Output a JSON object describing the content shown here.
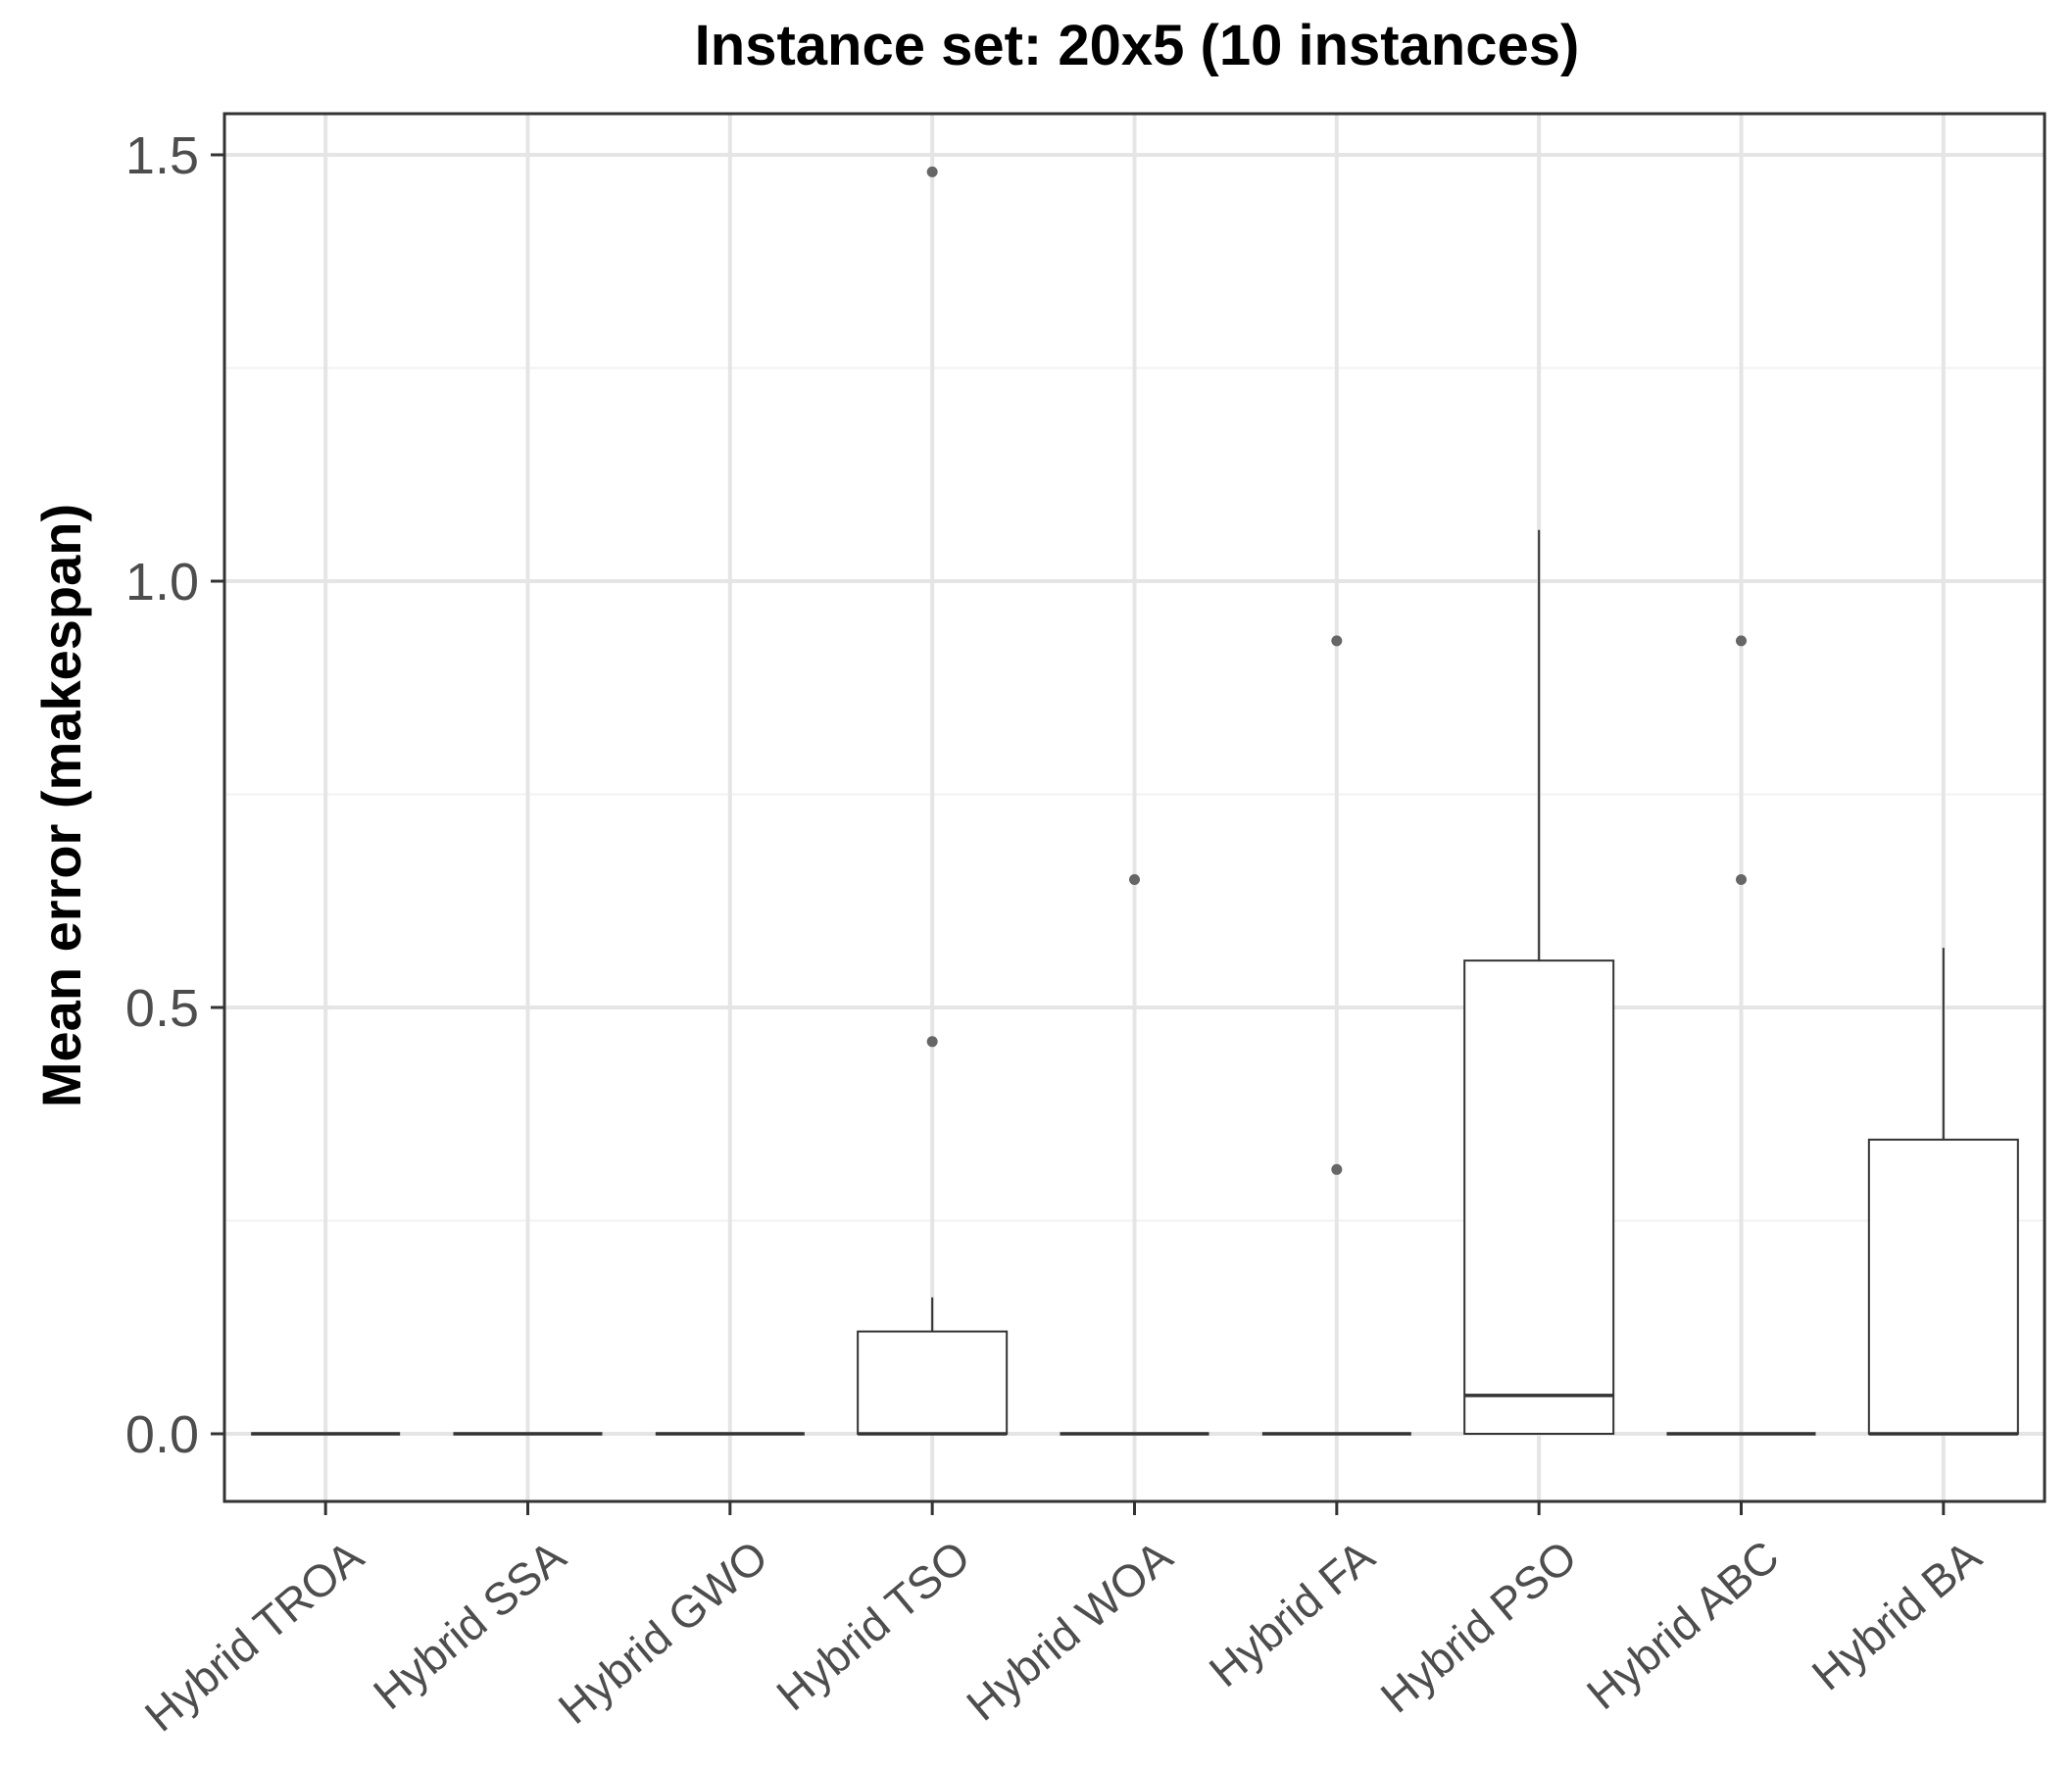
{
  "chart_data": {
    "type": "boxplot",
    "title": "Instance set: 20x5 (10 instances)",
    "xlabel": "",
    "ylabel": "Mean error (makespan)",
    "ylim": [
      -0.075,
      1.56
    ],
    "yticks": [
      0.0,
      0.5,
      1.0,
      1.5
    ],
    "ytick_labels": [
      "0.0",
      "0.5",
      "1.0",
      "1.5"
    ],
    "grid": true,
    "categories": [
      "Hybrid TROA",
      "Hybrid SSA",
      "Hybrid GWO",
      "Hybrid TSO",
      "Hybrid WOA",
      "Hybrid FA",
      "Hybrid PSO",
      "Hybrid ABC",
      "Hybrid BA"
    ],
    "boxes": [
      {
        "category": "Hybrid TROA",
        "min": 0,
        "q1": 0,
        "median": 0,
        "q3": 0,
        "max": 0,
        "outliers": []
      },
      {
        "category": "Hybrid SSA",
        "min": 0,
        "q1": 0,
        "median": 0,
        "q3": 0,
        "max": 0,
        "outliers": []
      },
      {
        "category": "Hybrid GWO",
        "min": 0,
        "q1": 0,
        "median": 0,
        "q3": 0,
        "max": 0,
        "outliers": []
      },
      {
        "category": "Hybrid TSO",
        "min": 0,
        "q1": 0,
        "median": 0,
        "q3": 0.12,
        "max": 0.16,
        "outliers": [
          0.46,
          1.48
        ]
      },
      {
        "category": "Hybrid WOA",
        "min": 0,
        "q1": 0,
        "median": 0,
        "q3": 0,
        "max": 0,
        "outliers": [
          0.65
        ]
      },
      {
        "category": "Hybrid FA",
        "min": 0,
        "q1": 0,
        "median": 0,
        "q3": 0,
        "max": 0,
        "outliers": [
          0.31,
          0.93
        ]
      },
      {
        "category": "Hybrid PSO",
        "min": 0,
        "q1": 0,
        "median": 0.045,
        "q3": 0.555,
        "max": 1.06,
        "outliers": []
      },
      {
        "category": "Hybrid ABC",
        "min": 0,
        "q1": 0,
        "median": 0,
        "q3": 0,
        "max": 0,
        "outliers": [
          0.65,
          0.93
        ]
      },
      {
        "category": "Hybrid BA",
        "min": 0,
        "q1": 0,
        "median": 0,
        "q3": 0.345,
        "max": 0.57,
        "outliers": []
      }
    ],
    "colors": {
      "panel_border": "#333333",
      "grid_major": "#e5e5e5",
      "grid_minor": "#f2f2f2",
      "box_stroke": "#333333",
      "box_fill": "#ffffff",
      "outlier": "#666666",
      "tick_label": "#4d4d4d",
      "title": "#000000"
    }
  }
}
